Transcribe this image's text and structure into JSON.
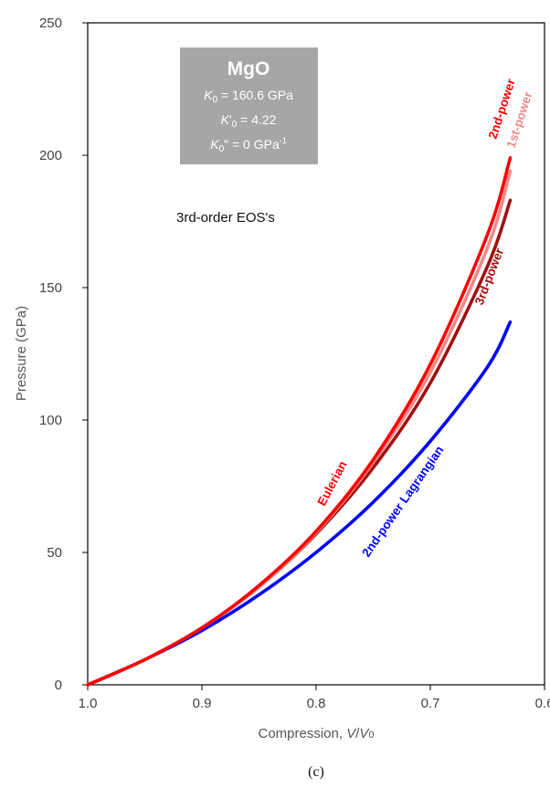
{
  "chart_data": {
    "type": "line",
    "xlabel": "Compression, V/V0",
    "xlabel_parts": {
      "prefix": "Compression, ",
      "v": "V",
      "slash": "/",
      "v0": "V",
      "sub0": "0"
    },
    "ylabel": "Pressure (GPa)",
    "xlim": [
      1.0,
      0.6
    ],
    "ylim": [
      0,
      250
    ],
    "x_reversed": true,
    "x_ticks": [
      "1.0",
      "0.9",
      "0.8",
      "0.7",
      "0.6"
    ],
    "x_tick_values": [
      1.0,
      0.9,
      0.8,
      0.7,
      0.6
    ],
    "y_ticks": [
      "0",
      "50",
      "100",
      "150",
      "200",
      "250"
    ],
    "y_tick_values": [
      0,
      50,
      100,
      150,
      200,
      250
    ],
    "grid": false,
    "note": "3rd-order EOS's",
    "panel_label": "(c)",
    "series": [
      {
        "name": "Eulerian 1st-power",
        "label": "1st-power",
        "color": "#f08a8a",
        "x": [
          1.0,
          0.95,
          0.9,
          0.85,
          0.8,
          0.75,
          0.7,
          0.65,
          0.63
        ],
        "y": [
          0,
          9.5,
          21.5,
          37,
          57.5,
          84,
          118,
          165,
          194
        ]
      },
      {
        "name": "Eulerian 2nd-power",
        "label": "2nd-power",
        "color": "#ff0000",
        "x": [
          1.0,
          0.95,
          0.9,
          0.85,
          0.8,
          0.75,
          0.7,
          0.65,
          0.63
        ],
        "y": [
          0,
          9.5,
          21.5,
          37.5,
          58,
          85,
          121,
          170,
          199
        ]
      },
      {
        "name": "Eulerian 3rd-power",
        "label": "3rd-power",
        "color": "#a01010",
        "x": [
          1.0,
          0.95,
          0.9,
          0.85,
          0.8,
          0.75,
          0.7,
          0.65,
          0.63
        ],
        "y": [
          0,
          9.5,
          21.5,
          37,
          57,
          82,
          114,
          158,
          183
        ]
      },
      {
        "name": "2nd-power Lagrangian",
        "label": "2nd-power Lagrangian",
        "color": "#0000ff",
        "x": [
          1.0,
          0.95,
          0.9,
          0.85,
          0.8,
          0.75,
          0.7,
          0.65,
          0.63
        ],
        "y": [
          0,
          9.5,
          20.5,
          34,
          50,
          69,
          92,
          120,
          137
        ]
      }
    ],
    "group_label": {
      "text": "Eulerian",
      "color": "#ff0000"
    },
    "info_box": {
      "title": "MgO",
      "k0_sym": "K",
      "k0_sub": "0",
      "k0_value": " = 160.6 GPa",
      "k0p_sym": "K",
      "k0p_prime": "'",
      "k0p_sub": "0",
      "k0p_value": " = 4.22",
      "k0pp_sym": "K",
      "k0pp_sub": "0",
      "k0pp_value": "\" = 0 GPa",
      "k0pp_sup": "-1",
      "background": "#a6a6a6"
    }
  }
}
